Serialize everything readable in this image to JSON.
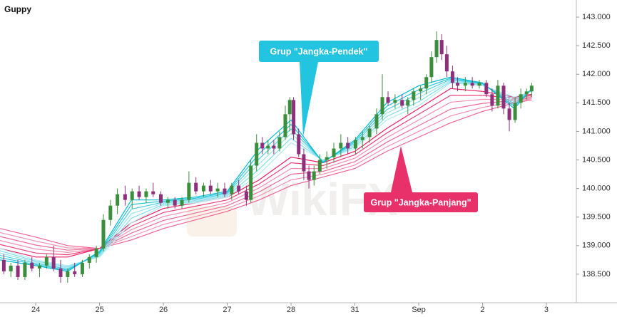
{
  "chart_data": {
    "type": "candlestick",
    "title": "Guppy",
    "watermark": "WikiFX",
    "up_color": "#3b8e3b",
    "down_color": "#8e2f7c",
    "xlim": [
      -0.56,
      8.47
    ],
    "xticks": [
      {
        "value": 0,
        "label": "24"
      },
      {
        "value": 1,
        "label": "25"
      },
      {
        "value": 2,
        "label": "26"
      },
      {
        "value": 3,
        "label": "27"
      },
      {
        "value": 4,
        "label": "28"
      },
      {
        "value": 5,
        "label": "31"
      },
      {
        "value": 6,
        "label": "Sep"
      },
      {
        "value": 7,
        "label": "2"
      },
      {
        "value": 8,
        "label": "3"
      }
    ],
    "ylim": [
      138.0,
      143.3
    ],
    "yticks": [
      {
        "value": 138.5,
        "label": "138.500"
      },
      {
        "value": 139,
        "label": "139.000"
      },
      {
        "value": 139.5,
        "label": "139.500"
      },
      {
        "value": 140,
        "label": "140.000"
      },
      {
        "value": 140.5,
        "label": "140.500"
      },
      {
        "value": 141,
        "label": "141.000"
      },
      {
        "value": 141.5,
        "label": "141.500"
      },
      {
        "value": 142,
        "label": "142.000"
      },
      {
        "value": 142.5,
        "label": "142.500"
      },
      {
        "value": 143,
        "label": "143.000"
      }
    ],
    "x": [
      -0.5,
      -0.39,
      -0.28,
      -0.17,
      -0.06,
      0.06,
      0.17,
      0.28,
      0.39,
      0.5,
      0.61,
      0.73,
      0.84,
      0.95,
      1.06,
      1.17,
      1.28,
      1.4,
      1.51,
      1.62,
      1.73,
      1.84,
      1.96,
      2.07,
      2.18,
      2.29,
      2.4,
      2.51,
      2.63,
      2.74,
      2.85,
      2.96,
      3.07,
      3.18,
      3.3,
      3.37,
      3.46,
      3.55,
      3.64,
      3.73,
      3.82,
      3.91,
      3.98,
      4.04,
      4.12,
      4.2,
      4.28,
      4.36,
      4.45,
      4.56,
      4.67,
      4.78,
      4.89,
      5.01,
      5.12,
      5.23,
      5.34,
      5.43,
      5.52,
      5.63,
      5.74,
      5.83,
      5.92,
      6.03,
      6.12,
      6.2,
      6.28,
      6.36,
      6.44,
      6.53,
      6.61,
      6.73,
      6.84,
      6.95,
      7.06,
      7.15,
      7.24,
      7.33,
      7.42,
      7.51,
      7.6,
      7.69,
      7.77
    ],
    "open": [
      138.75,
      138.55,
      138.65,
      138.45,
      138.7,
      138.6,
      138.65,
      138.8,
      138.6,
      138.45,
      138.55,
      138.5,
      138.7,
      138.8,
      138.95,
      139.45,
      139.7,
      139.9,
      139.8,
      139.95,
      139.85,
      139.95,
      139.9,
      139.75,
      139.8,
      139.7,
      139.8,
      140.1,
      139.95,
      140.05,
      139.95,
      140.0,
      139.9,
      140.05,
      139.95,
      139.8,
      140.4,
      140.8,
      140.7,
      140.75,
      140.7,
      140.9,
      141.3,
      141.55,
      140.95,
      140.6,
      140.3,
      140.15,
      140.3,
      140.5,
      140.55,
      140.7,
      140.8,
      140.7,
      140.85,
      140.9,
      141.05,
      141.3,
      141.6,
      141.5,
      141.55,
      141.45,
      141.55,
      141.7,
      141.75,
      141.95,
      142.3,
      142.6,
      142.35,
      142.05,
      141.85,
      141.8,
      141.85,
      141.8,
      141.85,
      141.65,
      141.45,
      141.8,
      141.4,
      141.2,
      141.5,
      141.65,
      141.7
    ],
    "high": [
      138.85,
      138.7,
      138.75,
      138.75,
      138.8,
      138.7,
      138.85,
      139.0,
      138.75,
      138.6,
      138.7,
      138.75,
      138.85,
      139.0,
      139.55,
      139.8,
      140.0,
      140.05,
      140.0,
      140.05,
      140.0,
      140.1,
      139.95,
      139.85,
      139.85,
      139.85,
      140.3,
      140.2,
      140.1,
      140.15,
      140.1,
      140.1,
      140.1,
      140.15,
      140.05,
      140.5,
      140.95,
      140.9,
      140.85,
      140.85,
      141.0,
      141.45,
      141.6,
      141.6,
      141.05,
      140.7,
      140.4,
      140.4,
      140.6,
      140.65,
      140.8,
      140.95,
      140.9,
      140.9,
      141.0,
      141.1,
      141.4,
      142.0,
      141.7,
      141.65,
      141.65,
      141.6,
      141.75,
      141.8,
      142.0,
      142.4,
      142.75,
      142.7,
      142.5,
      142.15,
      141.95,
      141.95,
      141.95,
      141.9,
      141.9,
      141.75,
      141.9,
      141.85,
      141.5,
      141.6,
      141.75,
      141.75,
      141.85
    ],
    "low": [
      138.5,
      138.45,
      138.4,
      138.4,
      138.55,
      138.45,
      138.6,
      138.55,
      138.35,
      138.35,
      138.45,
      138.45,
      138.6,
      138.7,
      138.9,
      139.35,
      139.55,
      139.7,
      139.65,
      139.8,
      139.75,
      139.85,
      139.7,
      139.65,
      139.65,
      139.65,
      139.75,
      139.9,
      139.85,
      139.9,
      139.85,
      139.85,
      139.8,
      139.9,
      139.7,
      139.75,
      140.3,
      140.6,
      140.6,
      140.6,
      140.65,
      140.85,
      141.0,
      140.85,
      140.55,
      140.15,
      140.0,
      140.05,
      140.25,
      140.35,
      140.45,
      140.55,
      140.6,
      140.6,
      140.7,
      140.8,
      140.95,
      141.2,
      141.45,
      141.4,
      141.4,
      141.3,
      141.45,
      141.55,
      141.65,
      141.85,
      142.2,
      142.25,
      141.95,
      141.75,
      141.7,
      141.7,
      141.75,
      141.75,
      141.6,
      141.35,
      141.4,
      141.3,
      141.0,
      141.15,
      141.4,
      141.55,
      141.6
    ],
    "close": [
      138.55,
      138.65,
      138.45,
      138.7,
      138.6,
      138.65,
      138.8,
      138.6,
      138.45,
      138.55,
      138.5,
      138.7,
      138.8,
      138.95,
      139.45,
      139.7,
      139.9,
      139.8,
      139.95,
      139.85,
      139.95,
      139.9,
      139.75,
      139.8,
      139.7,
      139.8,
      140.1,
      139.95,
      140.05,
      139.95,
      140.0,
      139.9,
      140.05,
      139.95,
      139.8,
      140.4,
      140.8,
      140.7,
      140.75,
      140.7,
      140.9,
      141.3,
      141.55,
      140.95,
      140.6,
      140.3,
      140.15,
      140.3,
      140.5,
      140.55,
      140.7,
      140.8,
      140.7,
      140.85,
      140.9,
      141.05,
      141.3,
      141.6,
      141.5,
      141.55,
      141.45,
      141.55,
      141.7,
      141.75,
      141.95,
      142.3,
      142.6,
      142.35,
      142.05,
      141.85,
      141.8,
      141.85,
      141.8,
      141.85,
      141.65,
      141.45,
      141.8,
      141.4,
      141.2,
      141.5,
      141.65,
      141.7,
      141.8
    ],
    "overlay": {
      "type": "line",
      "x": [
        -0.56,
        0,
        0.5,
        1,
        1.5,
        2,
        2.5,
        3,
        3.5,
        4,
        4.5,
        5,
        5.5,
        6,
        6.5,
        7,
        7.5,
        7.77
      ],
      "series": [
        {
          "color": "#f06292",
          "values": [
            139.3,
            139.15,
            139.0,
            138.95,
            139.1,
            139.3,
            139.45,
            139.6,
            139.8,
            140.05,
            140.2,
            140.35,
            140.65,
            140.9,
            141.15,
            141.35,
            141.5,
            141.55
          ]
        },
        {
          "color": "#f48fb1",
          "values": [
            139.23,
            139.08,
            138.96,
            138.95,
            139.16,
            139.37,
            139.51,
            139.65,
            139.87,
            140.15,
            140.25,
            140.41,
            140.73,
            141.0,
            141.27,
            141.42,
            141.52,
            141.57
          ]
        },
        {
          "color": "#ec6b98",
          "values": [
            139.16,
            139.01,
            138.92,
            138.95,
            139.22,
            139.44,
            139.57,
            139.7,
            139.94,
            140.25,
            140.3,
            140.47,
            140.81,
            141.1,
            141.39,
            141.49,
            141.54,
            141.59
          ]
        },
        {
          "color": "#f48fb1",
          "values": [
            139.09,
            138.94,
            138.88,
            138.95,
            139.28,
            139.51,
            139.63,
            139.75,
            140.01,
            140.35,
            140.35,
            140.53,
            140.89,
            141.2,
            141.51,
            141.56,
            141.56,
            141.61
          ]
        },
        {
          "color": "#ec407a",
          "values": [
            139.02,
            138.87,
            138.84,
            138.95,
            139.34,
            139.58,
            139.69,
            139.8,
            140.08,
            140.45,
            140.4,
            140.59,
            140.97,
            141.3,
            141.63,
            141.63,
            141.58,
            141.63
          ]
        },
        {
          "color": "#e91e63",
          "values": [
            138.95,
            138.8,
            138.8,
            138.95,
            139.4,
            139.65,
            139.75,
            139.85,
            140.15,
            140.55,
            140.45,
            140.65,
            141.05,
            141.4,
            141.75,
            141.7,
            141.6,
            141.65
          ]
        },
        {
          "color": "#b2ebf2",
          "values": [
            138.95,
            138.75,
            138.65,
            138.8,
            139.4,
            139.7,
            139.75,
            139.85,
            140.25,
            140.8,
            140.5,
            140.7,
            141.2,
            141.45,
            141.85,
            141.8,
            141.6,
            141.7
          ]
        },
        {
          "color": "#80deea",
          "values": [
            138.91,
            138.73,
            138.63,
            138.82,
            139.48,
            139.72,
            139.77,
            139.87,
            140.34,
            140.88,
            140.49,
            140.73,
            141.26,
            141.52,
            141.87,
            141.81,
            141.56,
            141.71
          ]
        },
        {
          "color": "#9be4ee",
          "values": [
            138.87,
            138.71,
            138.61,
            138.84,
            139.56,
            139.74,
            139.79,
            139.89,
            140.43,
            140.96,
            140.48,
            140.76,
            141.32,
            141.59,
            141.89,
            141.82,
            141.52,
            141.72
          ]
        },
        {
          "color": "#4dd0e1",
          "values": [
            138.83,
            138.69,
            138.59,
            138.86,
            139.64,
            139.76,
            139.81,
            139.91,
            140.52,
            141.04,
            140.47,
            140.79,
            141.38,
            141.66,
            141.91,
            141.83,
            141.48,
            141.73
          ]
        },
        {
          "color": "#26c6da",
          "values": [
            138.79,
            138.67,
            138.57,
            138.88,
            139.72,
            139.78,
            139.83,
            139.93,
            140.61,
            141.12,
            140.46,
            140.82,
            141.44,
            141.73,
            141.93,
            141.84,
            141.44,
            141.74
          ]
        },
        {
          "color": "#00bcd4",
          "values": [
            138.75,
            138.65,
            138.55,
            138.9,
            139.8,
            139.8,
            139.85,
            139.95,
            140.7,
            141.2,
            140.45,
            140.85,
            141.5,
            141.8,
            141.95,
            141.85,
            141.4,
            141.75
          ]
        }
      ]
    },
    "annotations": [
      {
        "text": "Grup \"Jangka-Pendek\"",
        "color": "#22c4e0"
      },
      {
        "text": "Grup \"Jangka-Panjang\"",
        "color": "#e8306b"
      }
    ]
  }
}
